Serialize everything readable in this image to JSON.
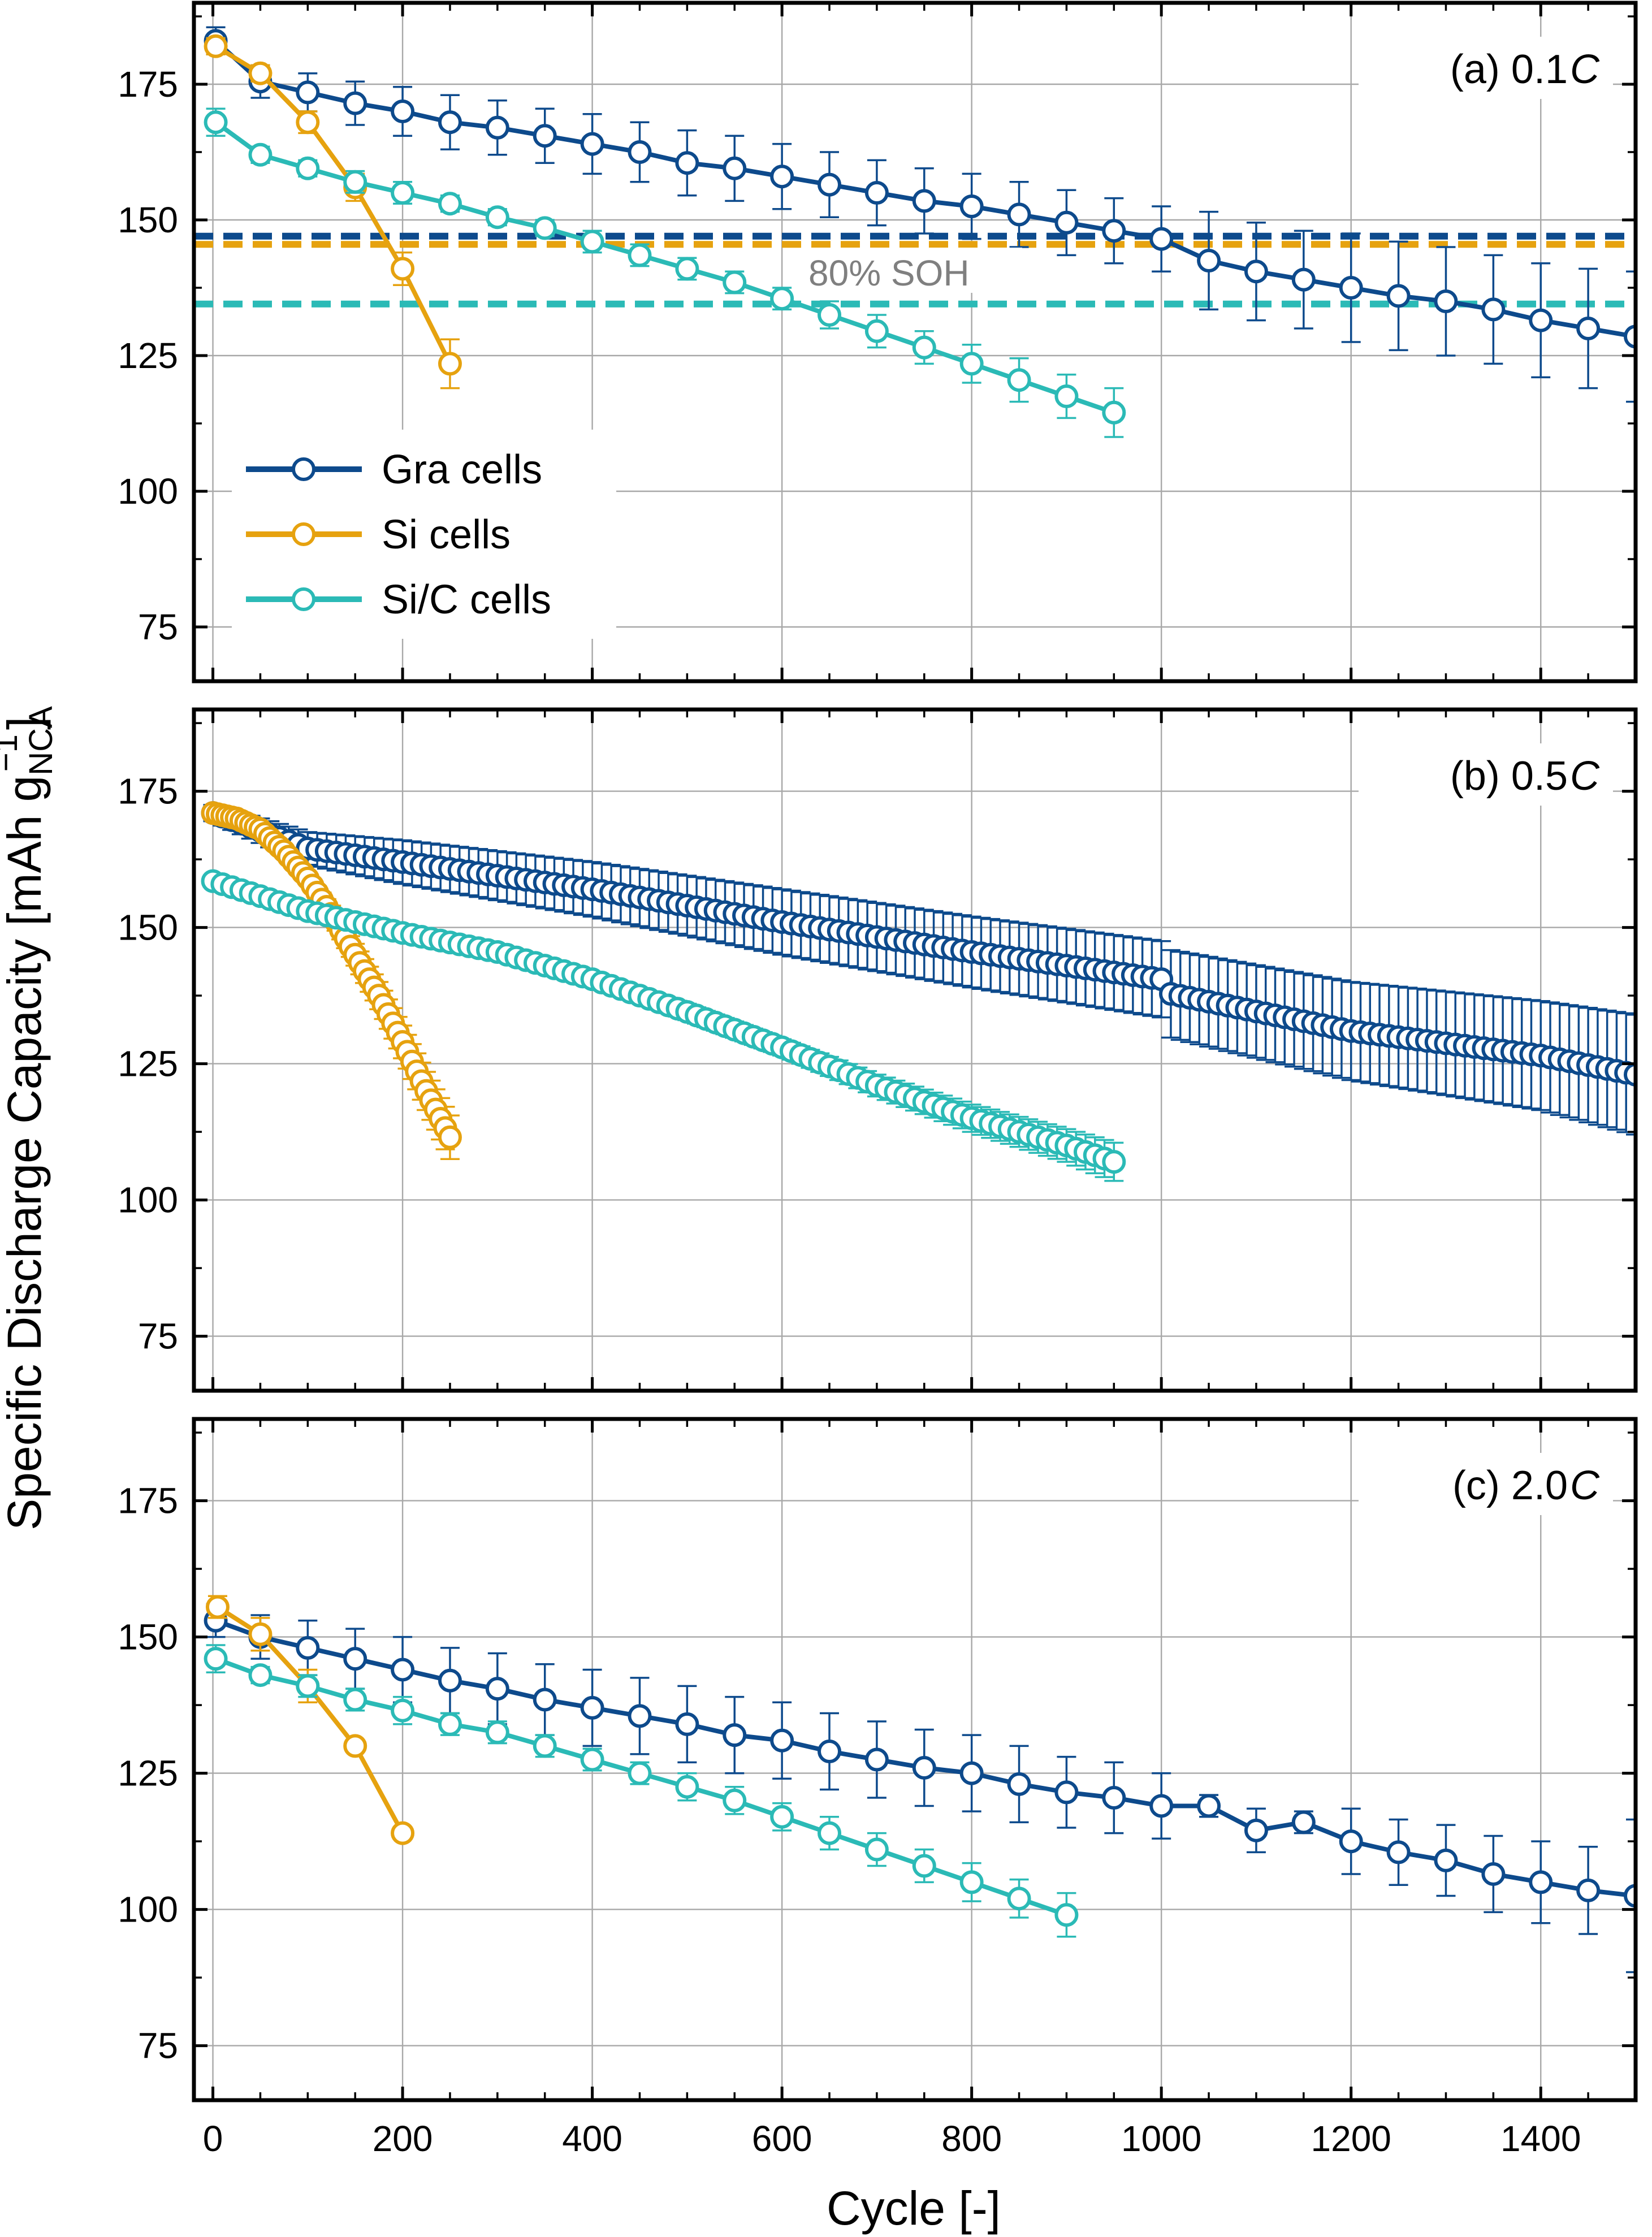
{
  "figure": {
    "ylabel_main": "Specific Discharge Capacity [mAh g",
    "ylabel_sub": "NCA",
    "ylabel_sup": "−1",
    "ylabel_end": "]",
    "xlabel": "Cycle [-]"
  },
  "legend": [
    {
      "label": "Gra cells",
      "color": "#0d4a8c"
    },
    {
      "label": "Si cells",
      "color": "#e6a20f"
    },
    {
      "label": "Si/C cells",
      "color": "#2bbab6"
    }
  ],
  "soh_label": "80% SOH",
  "colors": {
    "gra": "#0d4a8c",
    "si": "#e6a20f",
    "sic": "#2bbab6",
    "grid": "#a8a8a8"
  },
  "chart_data": [
    {
      "type": "line",
      "panel_label": "(a) 0.1 ",
      "panel_label_italic": "C",
      "xlim": [
        -20,
        1500
      ],
      "ylim": [
        65,
        190
      ],
      "xticks": [
        0,
        200,
        400,
        600,
        800,
        1000,
        1200,
        1400
      ],
      "yticks": [
        75,
        100,
        125,
        150,
        175
      ],
      "hlines": [
        {
          "series": "gra",
          "y": 147
        },
        {
          "series": "si",
          "y": 145.5
        },
        {
          "series": "sic",
          "y": 134.5
        }
      ],
      "series": [
        {
          "name": "Gra cells",
          "key": "gra",
          "x": [
            3,
            50,
            100,
            150,
            200,
            250,
            300,
            350,
            400,
            450,
            500,
            550,
            600,
            650,
            700,
            750,
            800,
            850,
            900,
            950,
            1000,
            1050,
            1100,
            1150,
            1200,
            1250,
            1300,
            1350,
            1400,
            1450,
            1500
          ],
          "y": [
            183,
            175.5,
            173.5,
            171.5,
            170,
            168,
            167,
            165.5,
            164,
            162.5,
            160.5,
            159.5,
            158,
            156.5,
            155,
            153.5,
            152.5,
            151,
            149.5,
            148,
            146.5,
            142.5,
            140.5,
            139,
            137.5,
            136,
            135,
            133.5,
            131.5,
            130,
            128.5
          ],
          "err": [
            2.5,
            3,
            3.5,
            4,
            4.5,
            5,
            5,
            5,
            5.5,
            5.5,
            6,
            6,
            6,
            6,
            6,
            6,
            6,
            6,
            6,
            6,
            6,
            9,
            9,
            9,
            10,
            10,
            10,
            10,
            10.5,
            11,
            12
          ]
        },
        {
          "name": "Si cells",
          "key": "si",
          "x": [
            3,
            50,
            100,
            150,
            200,
            250
          ],
          "y": [
            182,
            177,
            168,
            156,
            141,
            123.5
          ],
          "err": [
            1.5,
            1.5,
            2,
            2.5,
            3,
            4.5
          ]
        },
        {
          "name": "Si/C cells",
          "key": "sic",
          "x": [
            3,
            50,
            100,
            150,
            200,
            250,
            300,
            350,
            400,
            450,
            500,
            550,
            600,
            650,
            700,
            750,
            800,
            850,
            900,
            950
          ],
          "y": [
            168,
            162,
            159.5,
            157,
            155,
            153,
            150.5,
            148.5,
            146,
            143.5,
            141,
            138.5,
            135.5,
            132.5,
            129.5,
            126.5,
            123.5,
            120.5,
            117.5,
            114.5
          ],
          "err": [
            2.5,
            1.5,
            1.5,
            2,
            2,
            1.5,
            1.5,
            1.5,
            2,
            2,
            2,
            2,
            2,
            2.5,
            3,
            3,
            3.5,
            4,
            4,
            4.5
          ]
        }
      ]
    },
    {
      "type": "line",
      "panel_label": "(b) 0.5 ",
      "panel_label_italic": "C",
      "xlim": [
        -20,
        1500
      ],
      "ylim": [
        65,
        190
      ],
      "xticks": [
        0,
        200,
        400,
        600,
        800,
        1000,
        1200,
        1400
      ],
      "yticks": [
        75,
        100,
        125,
        150,
        175
      ],
      "dense": true,
      "series": [
        {
          "name": "Gra cells",
          "key": "gra",
          "x": [
            0,
            100,
            200,
            400,
            600,
            800,
            1000,
            1005,
            1200,
            1400,
            1500
          ],
          "y": [
            171,
            164.5,
            162,
            157,
            151,
            145.5,
            140.5,
            138,
            131,
            126.5,
            123
          ],
          "err": [
            1.5,
            3,
            4,
            5,
            6,
            6.5,
            7,
            8,
            9,
            10,
            11
          ]
        },
        {
          "name": "Si cells",
          "key": "si",
          "x": [
            0,
            25,
            50,
            75,
            100,
            125,
            150,
            175,
            200,
            225,
            250
          ],
          "y": [
            171,
            170,
            168,
            164,
            159,
            152.5,
            145,
            137.5,
            129,
            120,
            111.5
          ],
          "err": [
            0.5,
            0.5,
            0.5,
            1,
            1,
            1.5,
            2,
            2.5,
            3,
            3.5,
            4
          ]
        },
        {
          "name": "Si/C cells",
          "key": "sic",
          "x": [
            0,
            100,
            200,
            300,
            400,
            500,
            600,
            700,
            800,
            900,
            950
          ],
          "y": [
            158.5,
            153,
            149,
            145.5,
            140.5,
            134.5,
            128,
            121,
            115,
            110,
            107
          ],
          "err": [
            0.5,
            0.5,
            0.5,
            1,
            1,
            1.5,
            1.5,
            2,
            2.5,
            3,
            3.5
          ]
        }
      ]
    },
    {
      "type": "line",
      "panel_label": "(c) 2.0 ",
      "panel_label_italic": "C",
      "xlim": [
        -20,
        1500
      ],
      "ylim": [
        65,
        190
      ],
      "xticks": [
        0,
        200,
        400,
        600,
        800,
        1000,
        1200,
        1400
      ],
      "yticks": [
        75,
        100,
        125,
        150,
        175
      ],
      "series": [
        {
          "name": "Gra cells",
          "key": "gra",
          "x": [
            3,
            50,
            100,
            150,
            200,
            250,
            300,
            350,
            400,
            450,
            500,
            550,
            600,
            650,
            700,
            750,
            800,
            850,
            900,
            950,
            1000,
            1050,
            1100,
            1150,
            1200,
            1250,
            1300,
            1350,
            1400,
            1450,
            1500
          ],
          "y": [
            153,
            150,
            148,
            146,
            144,
            142,
            140.5,
            138.5,
            137,
            135.5,
            134,
            132,
            131,
            129,
            127.5,
            126,
            125,
            123,
            121.5,
            120.5,
            119,
            119,
            114.5,
            116,
            112.5,
            110.5,
            109,
            106.5,
            105,
            103.5,
            102.5
          ],
          "err": [
            3,
            4,
            5,
            5.5,
            6,
            6,
            6.5,
            6.5,
            7,
            7,
            7,
            7,
            7,
            7,
            7,
            7,
            7,
            7,
            6.5,
            6.5,
            6,
            2,
            4,
            2,
            6,
            6,
            6.5,
            7,
            7.5,
            8,
            14
          ]
        },
        {
          "name": "Si cells",
          "key": "si",
          "x": [
            5,
            50,
            100,
            150,
            200
          ],
          "y": [
            155.5,
            150.5,
            141,
            130,
            114
          ],
          "err": [
            2,
            3,
            3,
            1,
            1
          ]
        },
        {
          "name": "Si/C cells",
          "key": "sic",
          "x": [
            3,
            50,
            100,
            150,
            200,
            250,
            300,
            350,
            400,
            450,
            500,
            550,
            600,
            650,
            700,
            750,
            800,
            850,
            900
          ],
          "y": [
            146,
            143,
            141,
            138.5,
            136.5,
            134,
            132.5,
            130,
            127.5,
            125,
            122.5,
            120,
            117,
            114,
            111,
            108,
            105,
            102,
            99
          ],
          "err": [
            2.5,
            1.5,
            2,
            2,
            2.5,
            2,
            2,
            2,
            2,
            2,
            2.5,
            2.5,
            2.5,
            3,
            3,
            3,
            3.5,
            3.5,
            4
          ]
        }
      ]
    }
  ]
}
